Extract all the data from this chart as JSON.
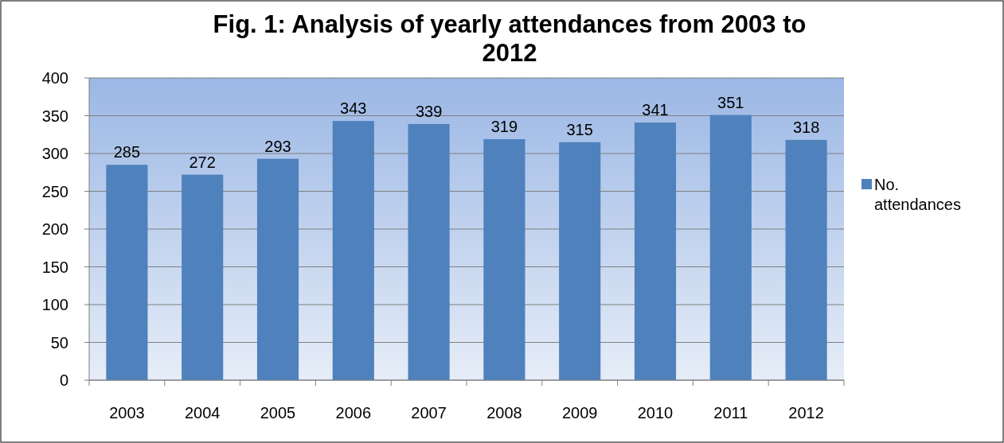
{
  "chart_data": {
    "type": "bar",
    "title": "Fig. 1: Analysis of yearly attendances from 2003 to 2012",
    "categories": [
      "2003",
      "2004",
      "2005",
      "2006",
      "2007",
      "2008",
      "2009",
      "2010",
      "2011",
      "2012"
    ],
    "series": [
      {
        "name": "No. attendances",
        "color": "#4f81bd",
        "values": [
          285,
          272,
          293,
          343,
          339,
          319,
          315,
          341,
          351,
          318
        ]
      }
    ],
    "ylim": [
      0,
      400
    ],
    "yticks": [
      0,
      50,
      100,
      150,
      200,
      250,
      300,
      350,
      400
    ],
    "grid": "y",
    "legend": "right",
    "data_labels": true
  }
}
